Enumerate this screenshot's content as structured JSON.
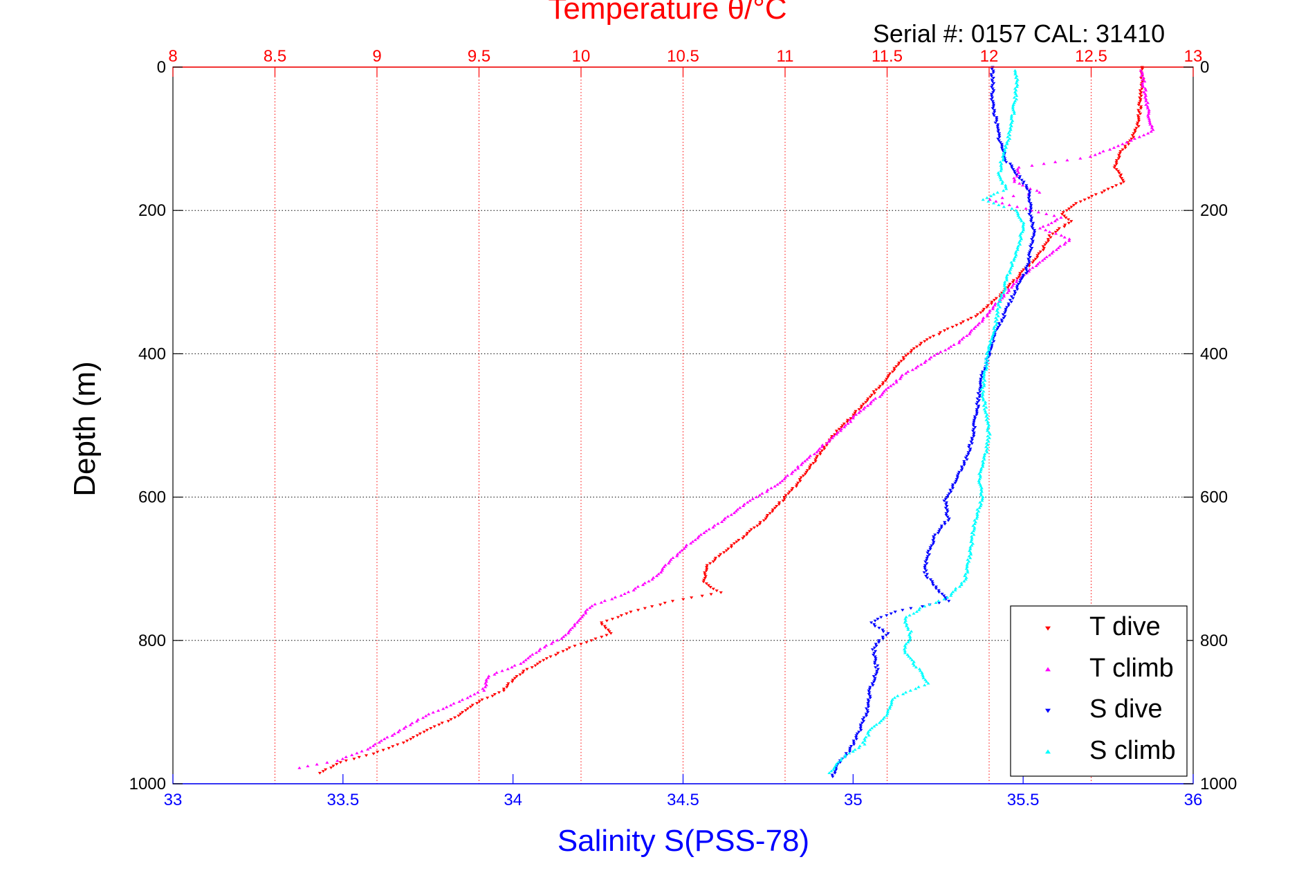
{
  "chart_data": {
    "type": "scatter",
    "title": "Temperature θ/°C",
    "subtitle": "Serial #: 0157  CAL: 31410",
    "ylabel": "Depth (m)",
    "xlabel": "Salinity S(PSS-78)",
    "ylim": [
      0,
      1000
    ],
    "y_reversed": true,
    "y_ticks": [
      "0",
      "200",
      "400",
      "600",
      "800",
      "1000"
    ],
    "temperature_axis": {
      "label": "Temperature θ/°C",
      "range": [
        8,
        13
      ],
      "ticks": [
        "8",
        "8.5",
        "9",
        "9.5",
        "10",
        "10.5",
        "11",
        "11.5",
        "12",
        "12.5",
        "13"
      ],
      "color": "#ff0000",
      "position": "top"
    },
    "salinity_axis": {
      "label": "Salinity S(PSS-78)",
      "range": [
        33,
        36
      ],
      "ticks": [
        "33",
        "33.5",
        "34",
        "34.5",
        "35",
        "35.5",
        "36"
      ],
      "color": "#0000ff",
      "position": "bottom"
    },
    "grid": true,
    "legend_position": "bottom-right",
    "series": [
      {
        "name": "T dive",
        "axis": "temperature",
        "color": "#ff0000",
        "marker": "triangle-down",
        "points": [
          [
            12.75,
            0
          ],
          [
            12.75,
            20
          ],
          [
            12.74,
            50
          ],
          [
            12.73,
            80
          ],
          [
            12.7,
            100
          ],
          [
            12.64,
            120
          ],
          [
            12.62,
            140
          ],
          [
            12.66,
            160
          ],
          [
            12.55,
            175
          ],
          [
            12.42,
            190
          ],
          [
            12.36,
            205
          ],
          [
            12.4,
            215
          ],
          [
            12.3,
            235
          ],
          [
            12.25,
            260
          ],
          [
            12.15,
            290
          ],
          [
            12.05,
            320
          ],
          [
            11.95,
            345
          ],
          [
            11.8,
            365
          ],
          [
            11.7,
            380
          ],
          [
            11.62,
            395
          ],
          [
            11.55,
            415
          ],
          [
            11.48,
            440
          ],
          [
            11.4,
            465
          ],
          [
            11.32,
            490
          ],
          [
            11.25,
            510
          ],
          [
            11.18,
            535
          ],
          [
            11.12,
            560
          ],
          [
            11.05,
            585
          ],
          [
            10.97,
            610
          ],
          [
            10.9,
            630
          ],
          [
            10.82,
            650
          ],
          [
            10.72,
            672
          ],
          [
            10.62,
            695
          ],
          [
            10.6,
            718
          ],
          [
            10.68,
            733
          ],
          [
            10.45,
            745
          ],
          [
            10.25,
            760
          ],
          [
            10.1,
            775
          ],
          [
            10.15,
            790
          ],
          [
            9.95,
            810
          ],
          [
            9.8,
            830
          ],
          [
            9.68,
            850
          ],
          [
            9.62,
            870
          ],
          [
            9.5,
            885
          ],
          [
            9.4,
            905
          ],
          [
            9.25,
            925
          ],
          [
            9.15,
            940
          ],
          [
            8.98,
            958
          ],
          [
            8.82,
            970
          ],
          [
            8.72,
            985
          ]
        ]
      },
      {
        "name": "T climb",
        "axis": "temperature",
        "color": "#ff00ff",
        "marker": "triangle-up",
        "points": [
          [
            12.75,
            5
          ],
          [
            12.76,
            30
          ],
          [
            12.78,
            60
          ],
          [
            12.8,
            90
          ],
          [
            12.5,
            125
          ],
          [
            12.15,
            140
          ],
          [
            12.12,
            160
          ],
          [
            12.25,
            175
          ],
          [
            12.0,
            185
          ],
          [
            12.35,
            210
          ],
          [
            12.25,
            225
          ],
          [
            12.4,
            240
          ],
          [
            12.28,
            265
          ],
          [
            12.15,
            295
          ],
          [
            12.05,
            325
          ],
          [
            11.95,
            360
          ],
          [
            11.85,
            385
          ],
          [
            11.72,
            405
          ],
          [
            11.58,
            430
          ],
          [
            11.48,
            455
          ],
          [
            11.35,
            485
          ],
          [
            11.28,
            505
          ],
          [
            11.18,
            530
          ],
          [
            11.08,
            555
          ],
          [
            10.95,
            585
          ],
          [
            10.8,
            610
          ],
          [
            10.7,
            632
          ],
          [
            10.6,
            650
          ],
          [
            10.5,
            672
          ],
          [
            10.42,
            695
          ],
          [
            10.35,
            715
          ],
          [
            10.22,
            735
          ],
          [
            10.05,
            752
          ],
          [
            9.98,
            775
          ],
          [
            9.92,
            795
          ],
          [
            9.8,
            812
          ],
          [
            9.72,
            830
          ],
          [
            9.55,
            850
          ],
          [
            9.52,
            870
          ],
          [
            9.38,
            888
          ],
          [
            9.22,
            908
          ],
          [
            9.1,
            928
          ],
          [
            8.95,
            952
          ],
          [
            8.8,
            968
          ],
          [
            8.62,
            978
          ]
        ]
      },
      {
        "name": "S dive",
        "axis": "salinity",
        "color": "#0000ff",
        "marker": "triangle-down",
        "points": [
          [
            35.41,
            0
          ],
          [
            35.41,
            25
          ],
          [
            35.41,
            50
          ],
          [
            35.42,
            75
          ],
          [
            35.43,
            100
          ],
          [
            35.45,
            130
          ],
          [
            35.5,
            160
          ],
          [
            35.52,
            175
          ],
          [
            35.52,
            200
          ],
          [
            35.53,
            230
          ],
          [
            35.52,
            260
          ],
          [
            35.51,
            285
          ],
          [
            35.48,
            310
          ],
          [
            35.45,
            340
          ],
          [
            35.42,
            370
          ],
          [
            35.4,
            400
          ],
          [
            35.38,
            430
          ],
          [
            35.37,
            460
          ],
          [
            35.36,
            490
          ],
          [
            35.35,
            520
          ],
          [
            35.33,
            550
          ],
          [
            35.3,
            580
          ],
          [
            35.27,
            605
          ],
          [
            35.28,
            630
          ],
          [
            35.24,
            655
          ],
          [
            35.22,
            680
          ],
          [
            35.21,
            705
          ],
          [
            35.25,
            730
          ],
          [
            35.28,
            745
          ],
          [
            35.12,
            760
          ],
          [
            35.05,
            775
          ],
          [
            35.1,
            790
          ],
          [
            35.06,
            810
          ],
          [
            35.07,
            840
          ],
          [
            35.05,
            870
          ],
          [
            35.04,
            900
          ],
          [
            35.02,
            925
          ],
          [
            35.0,
            945
          ],
          [
            34.98,
            960
          ],
          [
            34.95,
            975
          ],
          [
            34.94,
            990
          ]
        ]
      },
      {
        "name": "S climb",
        "axis": "salinity",
        "color": "#00ffff",
        "marker": "triangle-up",
        "points": [
          [
            35.48,
            5
          ],
          [
            35.48,
            35
          ],
          [
            35.47,
            65
          ],
          [
            35.46,
            95
          ],
          [
            35.44,
            125
          ],
          [
            35.43,
            150
          ],
          [
            35.45,
            170
          ],
          [
            35.38,
            185
          ],
          [
            35.48,
            200
          ],
          [
            35.5,
            220
          ],
          [
            35.49,
            245
          ],
          [
            35.47,
            270
          ],
          [
            35.45,
            300
          ],
          [
            35.43,
            330
          ],
          [
            35.42,
            360
          ],
          [
            35.4,
            390
          ],
          [
            35.39,
            420
          ],
          [
            35.38,
            450
          ],
          [
            35.39,
            480
          ],
          [
            35.4,
            510
          ],
          [
            35.39,
            540
          ],
          [
            35.37,
            570
          ],
          [
            35.38,
            600
          ],
          [
            35.36,
            630
          ],
          [
            35.35,
            660
          ],
          [
            35.34,
            690
          ],
          [
            35.33,
            715
          ],
          [
            35.28,
            740
          ],
          [
            35.2,
            755
          ],
          [
            35.15,
            770
          ],
          [
            35.17,
            790
          ],
          [
            35.15,
            815
          ],
          [
            35.2,
            845
          ],
          [
            35.22,
            860
          ],
          [
            35.12,
            880
          ],
          [
            35.1,
            905
          ],
          [
            35.05,
            925
          ],
          [
            35.03,
            945
          ],
          [
            34.98,
            960
          ],
          [
            34.93,
            985
          ]
        ]
      }
    ]
  }
}
